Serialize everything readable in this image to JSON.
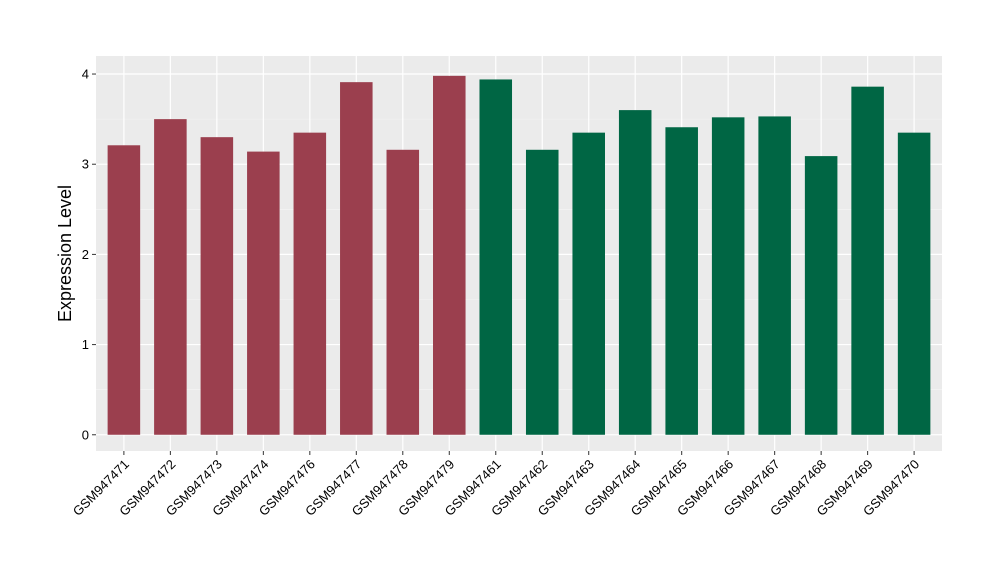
{
  "chart_data": {
    "type": "bar",
    "title": "",
    "xlabel": "",
    "ylabel": "Expression Level",
    "ylim": [
      -0.18,
      4.2
    ],
    "yticks": [
      0,
      1,
      2,
      3,
      4
    ],
    "grid": true,
    "legend": "none",
    "colors": {
      "panel_background": "#EBEBEB",
      "grid_major": "#FFFFFF",
      "grid_minor": "#F5F5F5",
      "axis_tick": "#333333"
    },
    "categories": [
      "GSM947471",
      "GSM947472",
      "GSM947473",
      "GSM947474",
      "GSM947476",
      "GSM947477",
      "GSM947478",
      "GSM947479",
      "GSM947461",
      "GSM947462",
      "GSM947463",
      "GSM947464",
      "GSM947465",
      "GSM947466",
      "GSM947467",
      "GSM947468",
      "GSM947469",
      "GSM947470"
    ],
    "values": [
      3.21,
      3.5,
      3.3,
      3.14,
      3.35,
      3.91,
      3.16,
      3.98,
      3.94,
      3.16,
      3.35,
      3.6,
      3.41,
      3.52,
      3.53,
      3.09,
      3.86,
      3.35
    ],
    "bar_colors": [
      "#9B3F4E",
      "#9B3F4E",
      "#9B3F4E",
      "#9B3F4E",
      "#9B3F4E",
      "#9B3F4E",
      "#9B3F4E",
      "#9B3F4E",
      "#006644",
      "#006644",
      "#006644",
      "#006644",
      "#006644",
      "#006644",
      "#006644",
      "#006644",
      "#006644",
      "#006644"
    ]
  }
}
